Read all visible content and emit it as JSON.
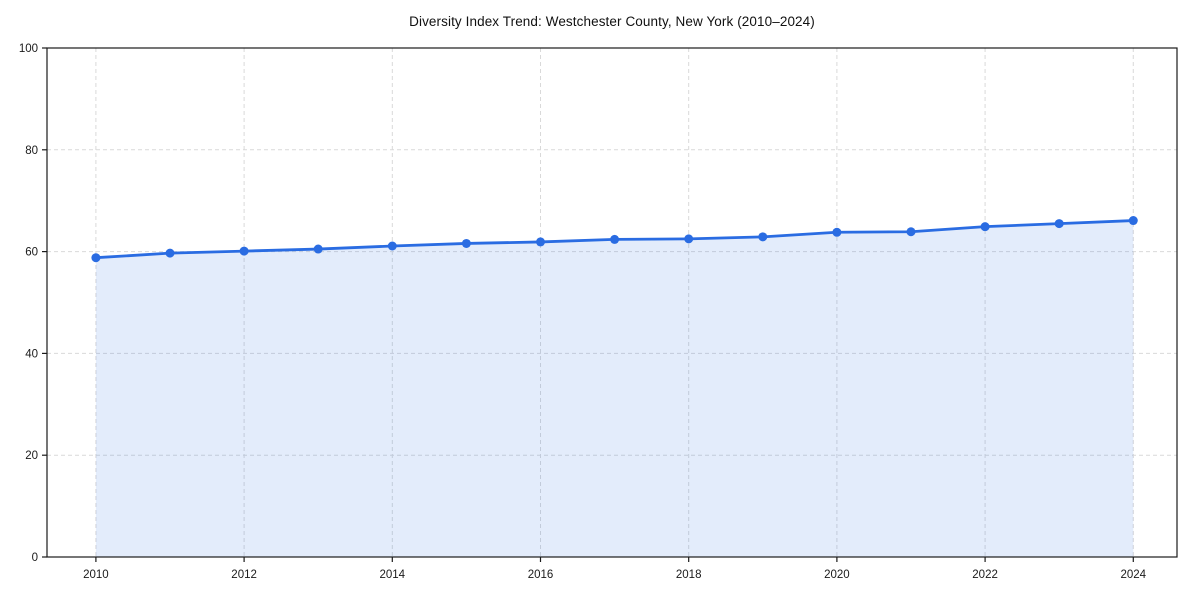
{
  "chart_data": {
    "type": "line",
    "title": "Diversity Index Trend: Westchester County, New York (2010–2024)",
    "x": [
      2010,
      2011,
      2012,
      2013,
      2014,
      2015,
      2016,
      2017,
      2018,
      2019,
      2020,
      2021,
      2022,
      2023,
      2024
    ],
    "series": [
      {
        "name": "Diversity Index",
        "values": [
          58.8,
          59.7,
          60.1,
          60.5,
          61.1,
          61.6,
          61.9,
          62.4,
          62.5,
          62.9,
          63.8,
          63.9,
          64.9,
          65.5,
          66.1
        ]
      }
    ],
    "xlabel": "",
    "ylabel": "",
    "xlim": [
      2009.34,
      2024.59
    ],
    "ylim": [
      0,
      100
    ],
    "xticks": [
      2010,
      2012,
      2014,
      2016,
      2018,
      2020,
      2022,
      2024
    ],
    "yticks": [
      0,
      20,
      40,
      60,
      80,
      100
    ],
    "grid": "dashed",
    "legend_position": "none",
    "area_fill": true,
    "marker": "circle",
    "colors": {
      "line": "#2a6ce2",
      "marker": "#2a6ce2",
      "fill": "rgba(42,108,226,0.13)",
      "grid": "#d9d9d9",
      "axis": "#1a1a1a",
      "tick_label": "#1a1a1a",
      "title": "#111111",
      "background": "#ffffff"
    }
  }
}
